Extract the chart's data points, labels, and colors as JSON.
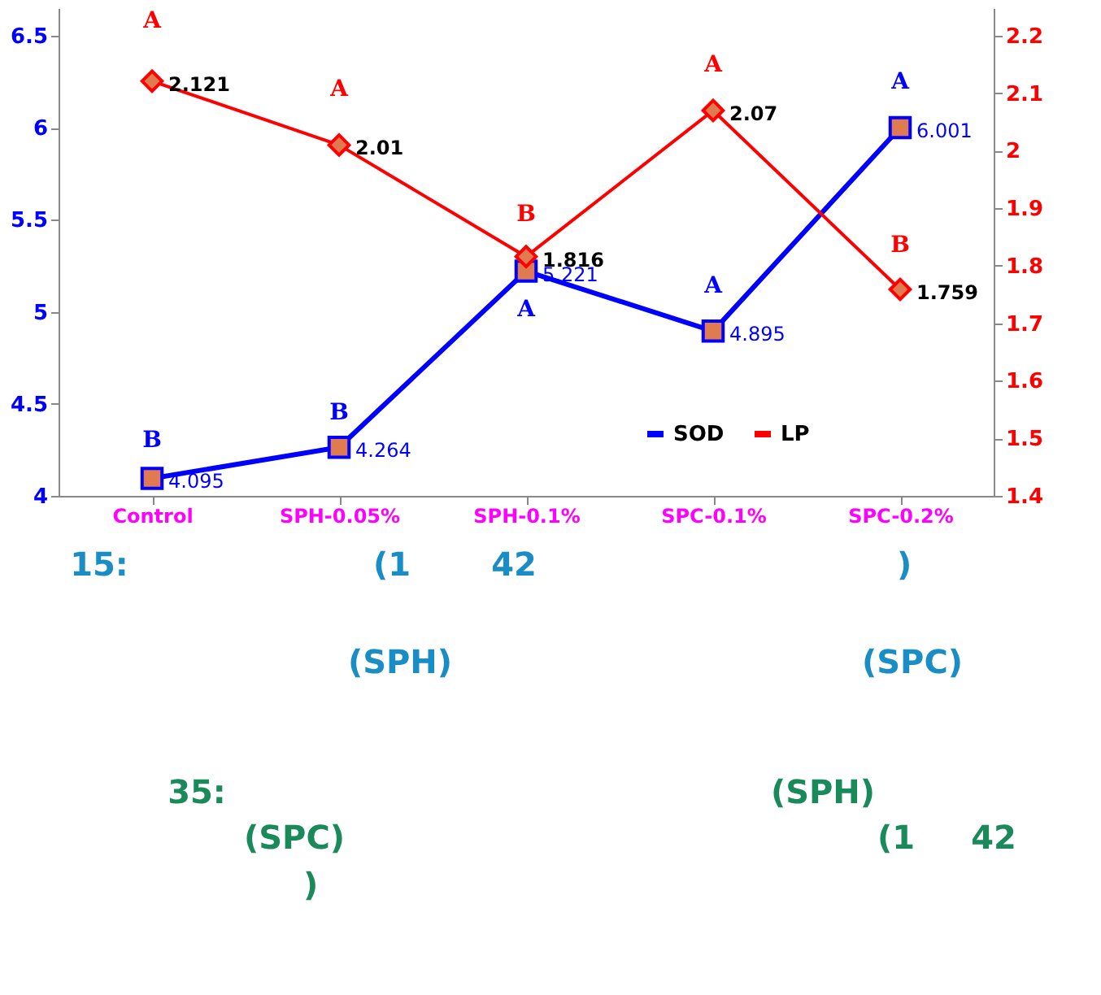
{
  "chart_data": {
    "type": "line",
    "categories": [
      "Control",
      "SPH-0.05%",
      "SPH-0.1%",
      "SPC-0.1%",
      "SPC-0.2%"
    ],
    "series": [
      {
        "name": "SOD",
        "color": "#0000ff",
        "marker": "square",
        "values": [
          4.095,
          4.264,
          5.221,
          4.895,
          6.001
        ]
      },
      {
        "name": "LP",
        "color": "#ff0000",
        "marker": "diamond",
        "axis": "y2",
        "values": [
          2.121,
          2.01,
          1.816,
          2.07,
          1.759
        ]
      }
    ],
    "ylim": [
      4,
      6.65
    ],
    "yticks": [
      4,
      4.5,
      5,
      5.5,
      6,
      6.5
    ],
    "y2lim": [
      1.4,
      2.248
    ],
    "y2ticks": [
      1.4,
      1.5,
      1.6,
      1.7,
      1.8,
      1.9,
      2,
      2.1,
      2.2
    ],
    "data_labels": true,
    "legend": "bottom right",
    "grid": false,
    "annotations": [
      "A",
      "A",
      "B",
      "A",
      "B",
      "B",
      "B",
      "A",
      "A",
      "A",
      "15:",
      "(1",
      "42",
      ")",
      "(SPH)",
      "(SPC)",
      "35:",
      "(SPH)",
      "(SPC)",
      "(1",
      "42",
      ")"
    ]
  }
}
